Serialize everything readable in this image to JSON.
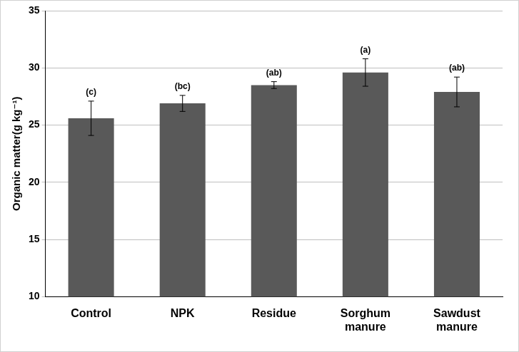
{
  "chart_data": {
    "type": "bar",
    "y_label": "Organic matter(g kg⁻¹)",
    "categories": [
      "Control",
      "NPK",
      "Residue",
      "Sorghum manure",
      "Sawdust manure"
    ],
    "values": [
      25.6,
      26.9,
      28.5,
      29.6,
      27.9
    ],
    "errors": [
      1.5,
      0.7,
      0.3,
      1.2,
      1.3
    ],
    "letters": [
      "(c)",
      "(bc)",
      "(ab)",
      "(a)",
      "(ab)"
    ],
    "color": "#595959",
    "ylim": [
      10,
      35
    ],
    "yticks": [
      10,
      15,
      20,
      25,
      30,
      35
    ],
    "grid": true
  }
}
